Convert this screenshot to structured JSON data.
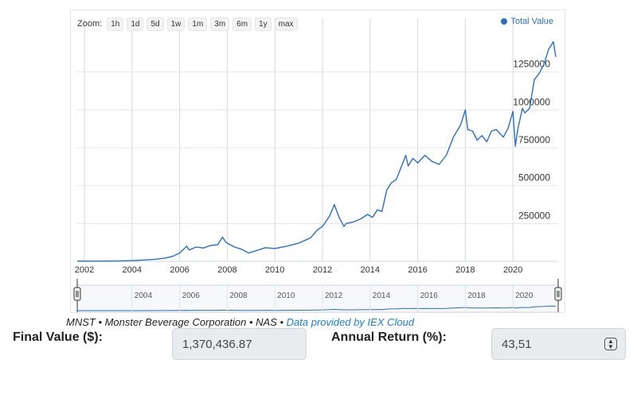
{
  "zoom": {
    "label": "Zoom:",
    "buttons": [
      "1h",
      "1d",
      "5d",
      "1w",
      "1m",
      "3m",
      "6m",
      "1y",
      "max"
    ]
  },
  "chart_data": {
    "type": "line",
    "series": [
      {
        "name": "Total Value",
        "color": "#2a6fc4",
        "points": [
          [
            2001.7,
            1500
          ],
          [
            2002.5,
            1800
          ],
          [
            2003.5,
            3000
          ],
          [
            2004.0,
            4500
          ],
          [
            2004.5,
            9000
          ],
          [
            2005.0,
            14000
          ],
          [
            2005.4,
            22000
          ],
          [
            2005.7,
            33000
          ],
          [
            2006.0,
            55000
          ],
          [
            2006.3,
            100000
          ],
          [
            2006.4,
            75000
          ],
          [
            2006.7,
            95000
          ],
          [
            2007.0,
            88000
          ],
          [
            2007.3,
            105000
          ],
          [
            2007.6,
            110000
          ],
          [
            2007.8,
            160000
          ],
          [
            2007.95,
            125000
          ],
          [
            2008.3,
            95000
          ],
          [
            2008.6,
            80000
          ],
          [
            2008.9,
            55000
          ],
          [
            2009.2,
            70000
          ],
          [
            2009.6,
            90000
          ],
          [
            2010.0,
            85000
          ],
          [
            2010.5,
            100000
          ],
          [
            2011.0,
            120000
          ],
          [
            2011.5,
            155000
          ],
          [
            2011.8,
            210000
          ],
          [
            2012.0,
            230000
          ],
          [
            2012.3,
            300000
          ],
          [
            2012.5,
            375000
          ],
          [
            2012.7,
            290000
          ],
          [
            2012.9,
            230000
          ],
          [
            2013.0,
            250000
          ],
          [
            2013.3,
            260000
          ],
          [
            2013.6,
            280000
          ],
          [
            2013.9,
            310000
          ],
          [
            2014.1,
            290000
          ],
          [
            2014.3,
            340000
          ],
          [
            2014.5,
            330000
          ],
          [
            2014.7,
            470000
          ],
          [
            2014.9,
            520000
          ],
          [
            2015.1,
            540000
          ],
          [
            2015.3,
            620000
          ],
          [
            2015.5,
            700000
          ],
          [
            2015.6,
            630000
          ],
          [
            2015.8,
            680000
          ],
          [
            2016.0,
            650000
          ],
          [
            2016.3,
            700000
          ],
          [
            2016.6,
            660000
          ],
          [
            2016.9,
            640000
          ],
          [
            2017.2,
            700000
          ],
          [
            2017.5,
            820000
          ],
          [
            2017.8,
            900000
          ],
          [
            2018.0,
            1000000
          ],
          [
            2018.1,
            870000
          ],
          [
            2018.3,
            860000
          ],
          [
            2018.5,
            800000
          ],
          [
            2018.7,
            830000
          ],
          [
            2018.9,
            790000
          ],
          [
            2019.1,
            860000
          ],
          [
            2019.3,
            870000
          ],
          [
            2019.6,
            820000
          ],
          [
            2019.8,
            880000
          ],
          [
            2020.0,
            990000
          ],
          [
            2020.1,
            760000
          ],
          [
            2020.2,
            870000
          ],
          [
            2020.4,
            1010000
          ],
          [
            2020.5,
            980000
          ],
          [
            2020.7,
            1010000
          ],
          [
            2020.9,
            1200000
          ],
          [
            2021.1,
            1240000
          ],
          [
            2021.3,
            1300000
          ],
          [
            2021.5,
            1400000
          ],
          [
            2021.7,
            1450000
          ],
          [
            2021.8,
            1350000
          ]
        ]
      }
    ],
    "x_ticks": [
      "2002",
      "2004",
      "2006",
      "2008",
      "2010",
      "2012",
      "2014",
      "2016",
      "2018",
      "2020"
    ],
    "y_ticks": [
      "250000",
      "500000",
      "750000",
      "1000000",
      "1250000"
    ],
    "navigator_ticks": [
      "2004",
      "2006",
      "2008",
      "2010",
      "2012",
      "2014",
      "2016",
      "2018",
      "2020"
    ],
    "xlim": [
      2001.7,
      2021.9
    ],
    "ylim": [
      0,
      1500000
    ],
    "legend": "top-right",
    "grid": true
  },
  "caption": {
    "text": "MNST • Monster Beverage Corporation • NAS • ",
    "link": "Data provided by IEX Cloud"
  },
  "final_value": {
    "label": "Final Value ($):",
    "value": "1,370,436.87"
  },
  "annual_return": {
    "label": "Annual Return (%):",
    "value": "43,51"
  }
}
